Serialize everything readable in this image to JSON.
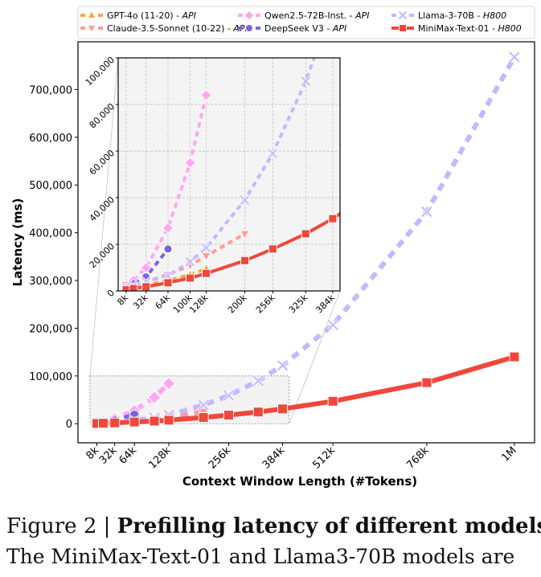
{
  "chart_data": {
    "type": "line",
    "xlabel": "Context Window Length (#Tokens)",
    "ylabel": "Latency (ms)",
    "x_unit_note": "k tokens",
    "x_scale": "power-compressed",
    "main": {
      "xticks": [
        8,
        32,
        64,
        128,
        256,
        384,
        512,
        768,
        1024
      ],
      "xtick_labels": [
        "8k",
        "32k",
        "64k",
        "128k",
        "256k",
        "384k",
        "512k",
        "768k",
        "1M"
      ],
      "yticks": [
        0,
        100000,
        200000,
        300000,
        400000,
        500000,
        600000,
        700000
      ],
      "ytick_labels": [
        "0",
        "100,000",
        "200,000",
        "300,000",
        "400,000",
        "500,000",
        "600,000",
        "700,000"
      ],
      "ylim": [
        -40000,
        800000
      ],
      "grid": false
    },
    "inset": {
      "xticks": [
        8,
        32,
        64,
        100,
        128,
        200,
        256,
        325,
        384
      ],
      "xtick_labels": [
        "8k",
        "32k",
        "64k",
        "100k",
        "128k",
        "200k",
        "256k",
        "325k",
        "384k"
      ],
      "yticks": [
        0,
        20000,
        40000,
        60000,
        80000,
        100000
      ],
      "ytick_labels": [
        "0",
        "20,000",
        "40,000",
        "60,000",
        "80,000",
        "100,000"
      ],
      "xlim": [
        1,
        400
      ],
      "ylim": [
        0,
        100000
      ],
      "grid": true
    },
    "legend_position": "top",
    "series": [
      {
        "name": "GPT-4o (11-20)",
        "suffix": "API",
        "color": "#F9A93B",
        "marker": "triangle-up",
        "dashed": true,
        "x": [
          8,
          16,
          32,
          64,
          100,
          128
        ],
        "y": [
          500,
          1000,
          2500,
          4500,
          7000,
          9500
        ]
      },
      {
        "name": "Claude-3.5-Sonnet (10-22)",
        "suffix": "API",
        "color": "#FF9C98",
        "marker": "triangle-down",
        "dashed": true,
        "x": [
          8,
          16,
          32,
          64,
          100,
          128,
          200
        ],
        "y": [
          1000,
          2000,
          4000,
          7000,
          11000,
          15000,
          24500
        ]
      },
      {
        "name": "Qwen2.5-72B-Inst.",
        "suffix": "API",
        "color": "#FFA6F2",
        "marker": "diamond",
        "dashed": true,
        "x": [
          8,
          16,
          32,
          64,
          100,
          128
        ],
        "y": [
          2500,
          4500,
          10000,
          27000,
          55000,
          84000
        ]
      },
      {
        "name": "DeepSeek V3",
        "suffix": "API",
        "color": "#7B61E8",
        "marker": "circle",
        "dashed": true,
        "x": [
          8,
          16,
          32,
          64
        ],
        "y": [
          1500,
          3000,
          6000,
          18000
        ]
      },
      {
        "name": "Llama-3-70B",
        "suffix": "H800",
        "color": "#C4B8FF",
        "marker": "x",
        "dashed": true,
        "x": [
          8,
          16,
          32,
          64,
          100,
          128,
          200,
          256,
          325,
          384,
          512,
          768,
          1024
        ],
        "y": [
          2000,
          2500,
          4000,
          6500,
          12500,
          18500,
          39000,
          59000,
          90000,
          122000,
          207000,
          444000,
          768000
        ]
      },
      {
        "name": "MiniMax-Text-01",
        "suffix": "H800",
        "color": "#F0473B",
        "marker": "square",
        "dashed": false,
        "x": [
          8,
          16,
          32,
          64,
          100,
          128,
          200,
          256,
          325,
          384,
          512,
          768,
          1024
        ],
        "y": [
          500,
          1000,
          1800,
          3500,
          5500,
          7500,
          13000,
          18000,
          24500,
          31000,
          47000,
          86000,
          140000
        ]
      }
    ]
  },
  "caption": {
    "label": "Figure 2 | ",
    "title": "Prefilling latency of different models.",
    "line2": "The MiniMax-Text-01 and Llama3-70B models are"
  }
}
